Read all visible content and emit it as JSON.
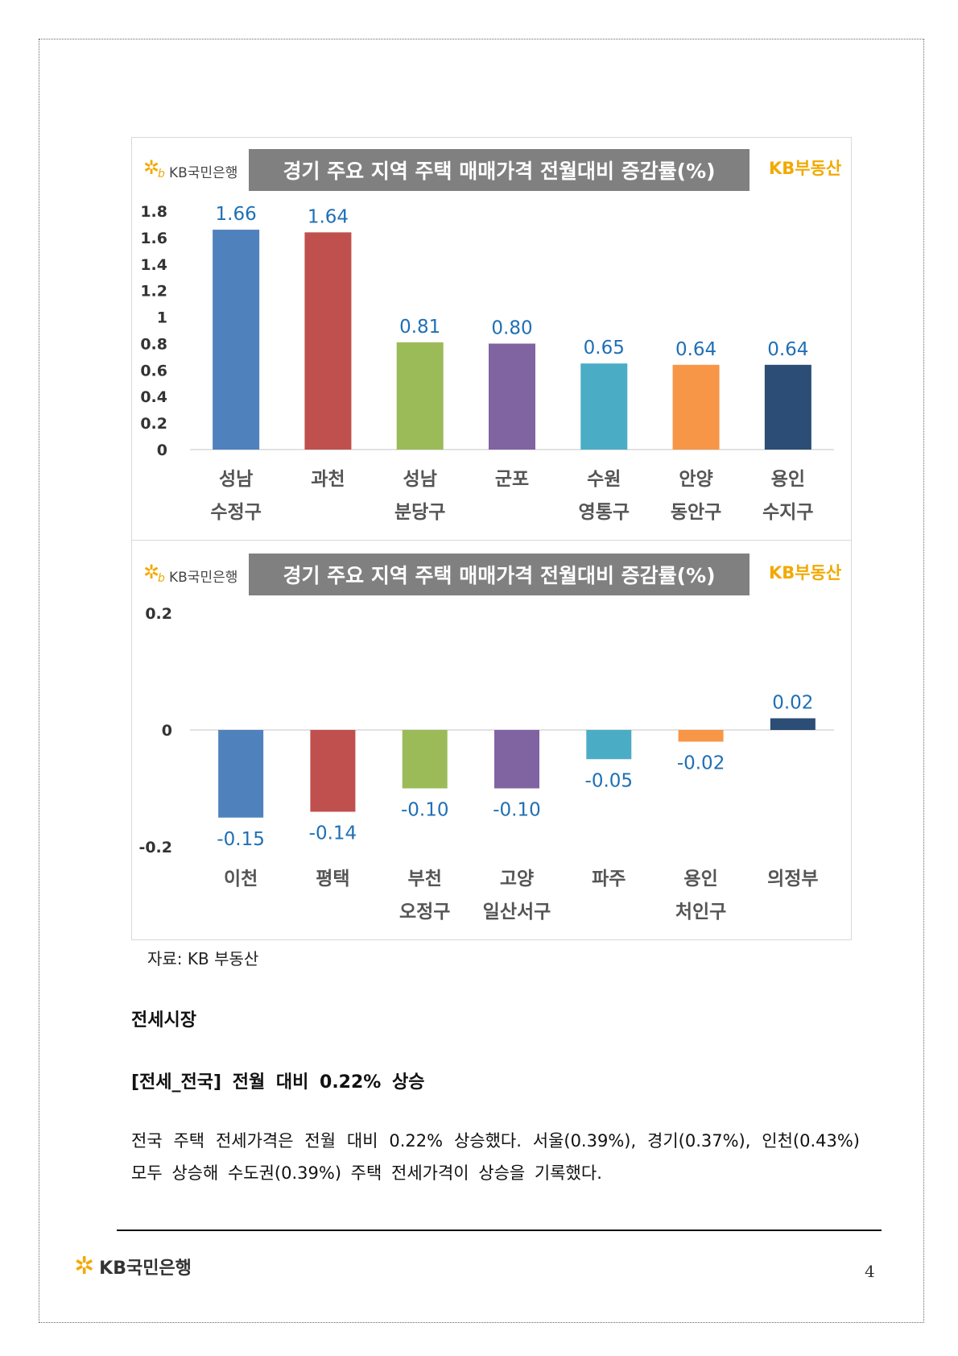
{
  "charts": [
    {
      "logo_text": "KB국민은행",
      "title": "경기 주요 지역 주택 매매가격 전월대비 증감률(%)",
      "brand_right": "KB부동산"
    },
    {
      "logo_text": "KB국민은행",
      "title": "경기 주요 지역 주택 매매가격 전월대비 증감률(%)",
      "brand_right": "KB부동산"
    }
  ],
  "chart_data": [
    {
      "type": "bar",
      "title": "경기 주요 지역 주택 매매가격 전월대비 증감률(%)",
      "categories": [
        [
          "성남",
          "수정구"
        ],
        [
          "과천",
          ""
        ],
        [
          "성남",
          "분당구"
        ],
        [
          "군포",
          ""
        ],
        [
          "수원",
          "영통구"
        ],
        [
          "안양",
          "동안구"
        ],
        [
          "용인",
          "수지구"
        ]
      ],
      "values": [
        1.66,
        1.64,
        0.81,
        0.8,
        0.65,
        0.64,
        0.64
      ],
      "value_labels": [
        "1.66",
        "1.64",
        "0.81",
        "0.80",
        "0.65",
        "0.64",
        "0.64"
      ],
      "yticks": [
        "0",
        "0.2",
        "0.4",
        "0.6",
        "0.8",
        "1",
        "1.2",
        "1.4",
        "1.6",
        "1.8"
      ],
      "ylim": [
        0,
        1.8
      ],
      "colors": [
        "#4f81bd",
        "#c0504d",
        "#9bbb59",
        "#8064a2",
        "#4bacc6",
        "#f79646",
        "#2c4d75"
      ]
    },
    {
      "type": "bar",
      "title": "경기 주요 지역 주택 매매가격 전월대비 증감률(%)",
      "categories": [
        [
          "이천",
          ""
        ],
        [
          "평택",
          ""
        ],
        [
          "부천",
          "오정구"
        ],
        [
          "고양",
          "일산서구"
        ],
        [
          "파주",
          ""
        ],
        [
          "용인",
          "처인구"
        ],
        [
          "의정부",
          ""
        ]
      ],
      "values": [
        -0.15,
        -0.14,
        -0.1,
        -0.1,
        -0.05,
        -0.02,
        0.02
      ],
      "value_labels": [
        "-0.15",
        "-0.14",
        "-0.10",
        "-0.10",
        "-0.05",
        "-0.02",
        "0.02"
      ],
      "yticks": [
        "-0.2",
        "0",
        "0.2"
      ],
      "ylim": [
        -0.2,
        0.2
      ],
      "colors": [
        "#4f81bd",
        "#c0504d",
        "#9bbb59",
        "#8064a2",
        "#4bacc6",
        "#f79646",
        "#2c4d75"
      ]
    }
  ],
  "source": "자료: KB 부동산",
  "section_title": "전세시장",
  "sub_title": "[전세_전국] 전월 대비 0.22% 상승",
  "paragraph": "전국 주택 전세가격은 전월 대비 0.22% 상승했다. 서울(0.39%), 경기(0.37%), 인천(0.43%) 모두 상승해 수도권(0.39%) 주택 전세가격이 상승을 기록했다.",
  "footer": {
    "logo_text": "KB국민은행",
    "page_number": "4"
  }
}
